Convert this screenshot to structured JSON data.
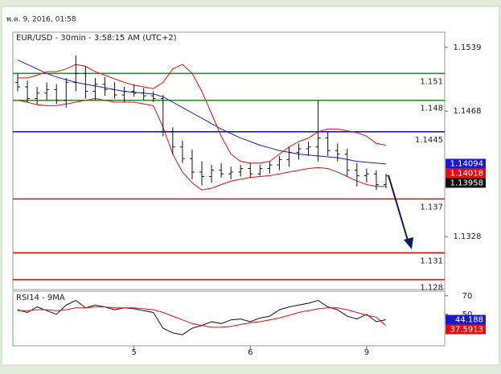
{
  "header": "พ.ค. 9, 2016, 01:58",
  "chart_data": [
    {
      "type": "ohlc",
      "title": "EUR/USD - 30min - 3:58:15 AM (UTC+2)",
      "categories": [
        null,
        null,
        null,
        null,
        null,
        null,
        null,
        null,
        null,
        null,
        null,
        null,
        "5",
        null,
        null,
        null,
        null,
        null,
        null,
        null,
        null,
        null,
        null,
        null,
        "6",
        null,
        null,
        null,
        null,
        null,
        null,
        null,
        null,
        null,
        null,
        null,
        "9",
        null,
        null
      ],
      "open": [
        1.15,
        1.1495,
        1.1482,
        1.1488,
        1.1492,
        1.148,
        1.15,
        1.151,
        1.149,
        1.1498,
        1.1492,
        1.1486,
        1.149,
        1.1488,
        1.1485,
        1.1482,
        1.1445,
        1.1428,
        1.1415,
        1.14,
        1.1395,
        1.1402,
        1.1398,
        1.14,
        1.1404,
        1.1398,
        1.1404,
        1.1408,
        1.1414,
        1.1422,
        1.1426,
        1.1428,
        1.1438,
        1.1424,
        1.142,
        1.1402,
        1.1396,
        1.1398,
        1.1386
      ],
      "high": [
        1.151,
        1.1502,
        1.1495,
        1.15,
        1.1498,
        1.1505,
        1.153,
        1.1518,
        1.1505,
        1.1506,
        1.15,
        1.1495,
        1.1498,
        1.1494,
        1.149,
        1.1486,
        1.145,
        1.1435,
        1.1425,
        1.1412,
        1.1408,
        1.141,
        1.1406,
        1.1408,
        1.141,
        1.1408,
        1.1412,
        1.1418,
        1.1428,
        1.1432,
        1.1434,
        1.148,
        1.1445,
        1.1432,
        1.1426,
        1.141,
        1.1404,
        1.1402,
        1.1398
      ],
      "low": [
        1.149,
        1.1478,
        1.1475,
        1.148,
        1.1476,
        1.1472,
        1.149,
        1.1482,
        1.148,
        1.1485,
        1.1482,
        1.1478,
        1.1484,
        1.148,
        1.1478,
        1.144,
        1.142,
        1.141,
        1.1392,
        1.1385,
        1.1388,
        1.1394,
        1.1392,
        1.1395,
        1.1394,
        1.1396,
        1.1398,
        1.1402,
        1.1406,
        1.1414,
        1.1418,
        1.1412,
        1.1418,
        1.1412,
        1.1395,
        1.1384,
        1.1388,
        1.138,
        1.1382
      ],
      "close": [
        1.1495,
        1.1482,
        1.1488,
        1.1492,
        1.148,
        1.15,
        1.151,
        1.149,
        1.1498,
        1.1492,
        1.1486,
        1.149,
        1.1488,
        1.1485,
        1.1482,
        1.1445,
        1.1428,
        1.1415,
        1.14,
        1.1395,
        1.1402,
        1.1398,
        1.14,
        1.1404,
        1.1398,
        1.1404,
        1.1408,
        1.1414,
        1.1422,
        1.1426,
        1.1428,
        1.1438,
        1.1424,
        1.142,
        1.1402,
        1.1396,
        1.1398,
        1.1386,
        1.13958
      ],
      "series": [
        {
          "color": "#1a1acc",
          "values": [
            1.1525,
            1.152,
            1.1515,
            1.151,
            1.1506,
            1.1503,
            1.15,
            1.1498,
            1.1496,
            1.1494,
            1.1492,
            1.149,
            1.1489,
            1.1488,
            1.1487,
            1.1484,
            1.1478,
            1.1472,
            1.1466,
            1.146,
            1.1454,
            1.1448,
            1.1443,
            1.1438,
            1.1434,
            1.143,
            1.1427,
            1.1424,
            1.1422,
            1.142,
            1.1419,
            1.1418,
            1.1417,
            1.1416,
            1.1414,
            1.1412,
            1.1411,
            1.141,
            1.1409
          ]
        },
        {
          "color": "#e01010",
          "values": [
            1.1505,
            1.1505,
            1.1508,
            1.1512,
            1.1512,
            1.1515,
            1.152,
            1.1518,
            1.1512,
            1.1508,
            1.1504,
            1.15,
            1.1497,
            1.1495,
            1.1493,
            1.15,
            1.1515,
            1.152,
            1.151,
            1.149,
            1.1465,
            1.144,
            1.142,
            1.1412,
            1.141,
            1.141,
            1.1412,
            1.142,
            1.1428,
            1.1434,
            1.1438,
            1.1445,
            1.1448,
            1.1448,
            1.1446,
            1.1444,
            1.144,
            1.1432,
            1.143
          ]
        },
        {
          "color": "#e01010",
          "values": [
            1.148,
            1.1478,
            1.1475,
            1.1474,
            1.1474,
            1.1476,
            1.1478,
            1.148,
            1.1482,
            1.148,
            1.1478,
            1.1478,
            1.1478,
            1.1476,
            1.1474,
            1.145,
            1.142,
            1.14,
            1.1388,
            1.138,
            1.1382,
            1.1386,
            1.139,
            1.1392,
            1.1394,
            1.1395,
            1.1396,
            1.1398,
            1.14,
            1.1402,
            1.1404,
            1.1405,
            1.1404,
            1.14,
            1.1395,
            1.139,
            1.1386,
            1.1384,
            1.1384
          ]
        }
      ],
      "levels": [
        {
          "value": 1.151,
          "color": "#2a8a2a"
        },
        {
          "value": 1.148,
          "color": "#2a8a2a"
        },
        {
          "value": 1.1445,
          "color": "#1a1acc"
        },
        {
          "value": 1.137,
          "color": "#e01010"
        },
        {
          "value": 1.131,
          "color": "#e01010"
        },
        {
          "value": 1.128,
          "color": "#e01010"
        }
      ],
      "price_tags": [
        {
          "value": 1.14094,
          "color": "#1a1acc"
        },
        {
          "value": 1.14018,
          "color": "#e01010"
        },
        {
          "value": 1.13958,
          "color": "#111111"
        }
      ],
      "ylim": [
        1.1269,
        1.1556
      ],
      "yticks": [
        1.1539,
        1.1468,
        1.1328
      ]
    },
    {
      "type": "line",
      "title": "RSI14 - 9MA",
      "series": [
        {
          "color": "#111111",
          "values": [
            55,
            52,
            58,
            54,
            50,
            60,
            65,
            57,
            60,
            58,
            55,
            57,
            56,
            54,
            52,
            35,
            30,
            28,
            35,
            38,
            42,
            40,
            44,
            45,
            42,
            46,
            48,
            55,
            58,
            60,
            62,
            65,
            58,
            55,
            48,
            45,
            50,
            42,
            44.188
          ]
        },
        {
          "color": "#e01010",
          "values": [
            54,
            54,
            55,
            55,
            54,
            55,
            57,
            57,
            58,
            58,
            57,
            57,
            57,
            56,
            55,
            52,
            48,
            44,
            40,
            38,
            36,
            36,
            37,
            39,
            41,
            42,
            44,
            46,
            49,
            52,
            54,
            56,
            57,
            57,
            55,
            52,
            49,
            47,
            37.5913
          ]
        }
      ],
      "price_tags": [
        {
          "value": 44.188,
          "color": "#1a1acc"
        },
        {
          "value": 37.5913,
          "color": "#e01010"
        }
      ],
      "ylim": [
        16,
        75
      ],
      "yticks": [
        70,
        50
      ]
    }
  ]
}
